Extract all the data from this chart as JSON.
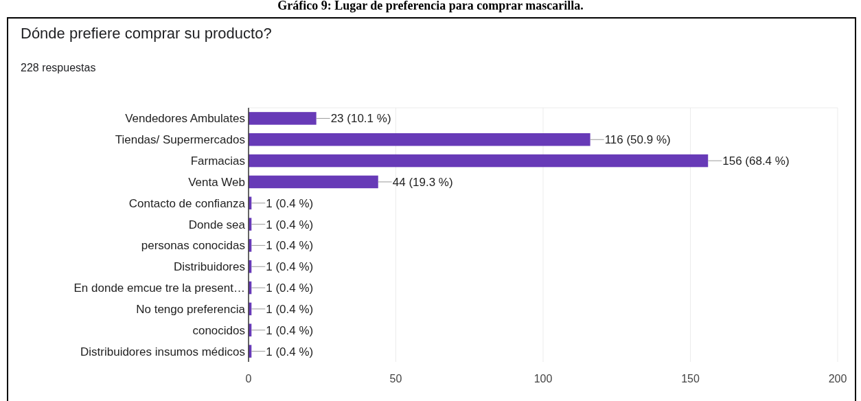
{
  "chart_data": {
    "type": "bar",
    "orientation": "horizontal",
    "title": "Gráfico 9: Lugar de preferencia para comprar mascarilla.",
    "subtitle": "Dónde prefiere comprar su producto?",
    "annotations": [
      "228 respuestas"
    ],
    "categories": [
      "Vendedores Ambulates",
      "Tiendas/ Supermercados",
      "Farmacias",
      "Venta Web",
      "Contacto de confianza",
      "Donde sea",
      "personas conocidas",
      "Distribuidores",
      "En donde emcue tre la present…",
      "No tengo preferencia",
      "conocidos",
      "Distribuidores insumos médicos"
    ],
    "values": [
      23,
      116,
      156,
      44,
      1,
      1,
      1,
      1,
      1,
      1,
      1,
      1
    ],
    "value_labels": [
      "23 (10.1 %)",
      "116 (50.9 %)",
      "156 (68.4 %)",
      "44 (19.3 %)",
      "1 (0.4 %)",
      "1 (0.4 %)",
      "1 (0.4 %)",
      "1 (0.4 %)",
      "1 (0.4 %)",
      "1 (0.4 %)",
      "1 (0.4 %)",
      "1 (0.4 %)"
    ],
    "color": "#673ab7",
    "xlim": [
      0,
      200
    ],
    "xticks": [
      0,
      50,
      100,
      150,
      200
    ],
    "grid": "x"
  }
}
